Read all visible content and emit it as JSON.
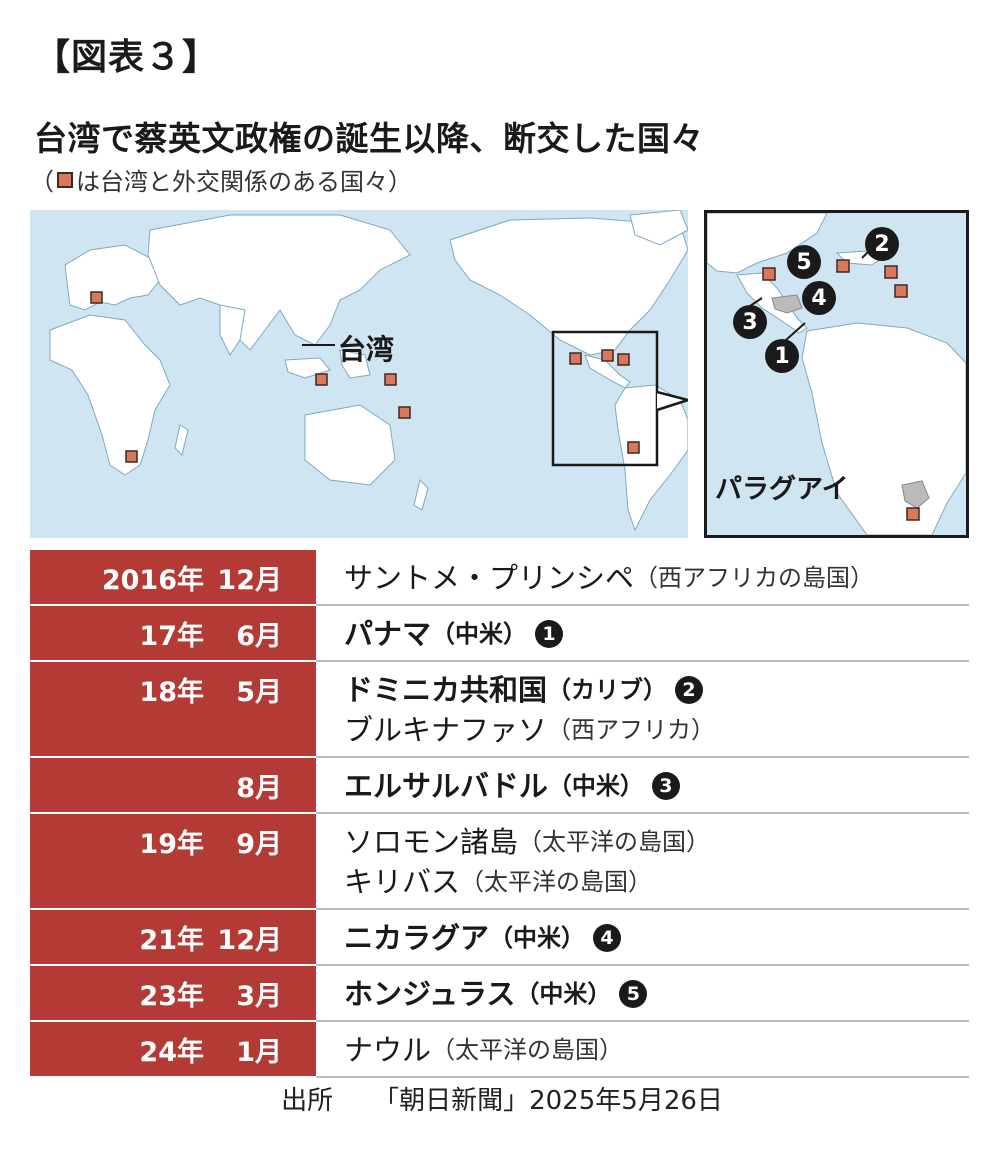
{
  "figure_label": "【図表３】",
  "title": "台湾で蔡英文政権の誕生以降、断交した国々",
  "subtitle_open": "（",
  "subtitle_text": "は台湾と外交関係のある国々）",
  "map": {
    "taiwan_label": "台湾",
    "paraguay_label": "パラグアイ",
    "land_color": "#ffffff",
    "sea_color": "#cfe5f1",
    "marker_color": "#d9785a",
    "inset_markers": [
      "1",
      "2",
      "3",
      "4",
      "5"
    ]
  },
  "table": {
    "rows": [
      {
        "year": "2016年",
        "month": "12月",
        "events": [
          {
            "name": "サントメ・プリンシペ",
            "note": "（西アフリカの島国）",
            "bold": false,
            "badge": ""
          }
        ]
      },
      {
        "year": "17年",
        "month": "6月",
        "events": [
          {
            "name": "パナマ",
            "note": "（中米）",
            "bold": true,
            "badge": "1"
          }
        ]
      },
      {
        "year": "18年",
        "month": "5月",
        "events": [
          {
            "name": "ドミニカ共和国",
            "note": "（カリブ）",
            "bold": true,
            "badge": "2"
          },
          {
            "name": "ブルキナファソ",
            "note": "（西アフリカ）",
            "bold": false,
            "badge": ""
          }
        ]
      },
      {
        "year": "",
        "month": "8月",
        "events": [
          {
            "name": "エルサルバドル",
            "note": "（中米）",
            "bold": true,
            "badge": "3"
          }
        ]
      },
      {
        "year": "19年",
        "month": "9月",
        "events": [
          {
            "name": "ソロモン諸島",
            "note": "（太平洋の島国）",
            "bold": false,
            "badge": ""
          },
          {
            "name": "キリバス",
            "note": "（太平洋の島国）",
            "bold": false,
            "badge": ""
          }
        ]
      },
      {
        "year": "21年",
        "month": "12月",
        "events": [
          {
            "name": "ニカラグア",
            "note": "（中米）",
            "bold": true,
            "badge": "4"
          }
        ]
      },
      {
        "year": "23年",
        "month": "3月",
        "events": [
          {
            "name": "ホンジュラス",
            "note": "（中米）",
            "bold": true,
            "badge": "5"
          }
        ]
      },
      {
        "year": "24年",
        "month": "1月",
        "events": [
          {
            "name": "ナウル",
            "note": "（太平洋の島国）",
            "bold": false,
            "badge": ""
          }
        ]
      }
    ]
  },
  "source": {
    "label": "出所",
    "text": "「朝日新聞」2025年5月26日"
  }
}
